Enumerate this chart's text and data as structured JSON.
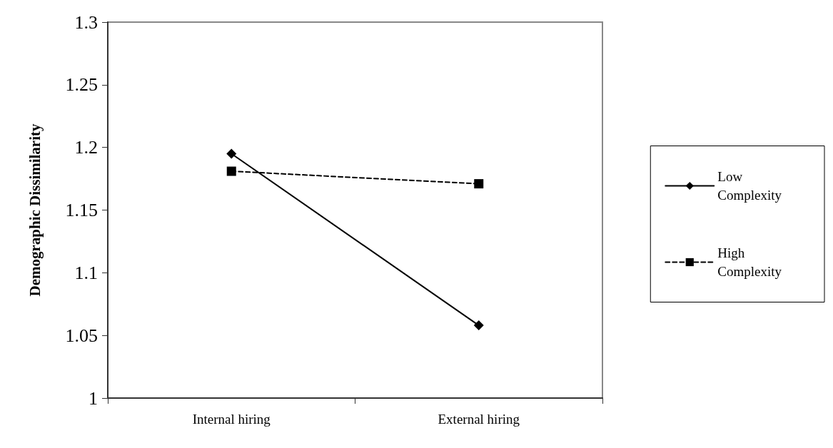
{
  "chart_data": {
    "type": "line",
    "ylabel": "Demographic Dissimilarity",
    "categories": [
      "Internal hiring",
      "External hiring"
    ],
    "series": [
      {
        "name": "Low Complexity",
        "color": "#000000",
        "values": [
          1.195,
          1.058
        ],
        "marker": "diamond",
        "line_style": "solid"
      },
      {
        "name": "High Complexity",
        "color": "#000000",
        "values": [
          1.181,
          1.171
        ],
        "marker": "square",
        "line_style": "dashed"
      }
    ],
    "ylim": [
      1,
      1.3
    ],
    "yticks": [
      1,
      1.05,
      1.1,
      1.15,
      1.2,
      1.25,
      1.3
    ],
    "grid": false,
    "legend": "right"
  }
}
